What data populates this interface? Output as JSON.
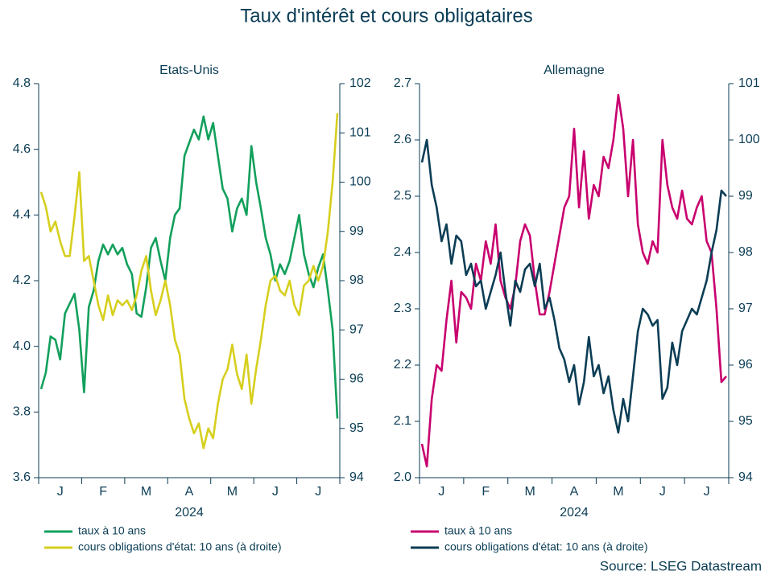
{
  "title": "Taux d'intérêt et cours obligataires",
  "source": "Source: LSEG Datastream",
  "chart_data": [
    {
      "type": "line",
      "title": "Etats-Unis",
      "xlabel": "2024",
      "categories": [
        null,
        null,
        null,
        null,
        "J",
        null,
        null,
        null,
        null,
        null,
        null,
        null,
        null,
        "F",
        null,
        null,
        null,
        null,
        null,
        null,
        null,
        null,
        "M",
        null,
        null,
        null,
        null,
        null,
        null,
        null,
        null,
        "A",
        null,
        null,
        null,
        null,
        null,
        null,
        null,
        null,
        "M",
        null,
        null,
        null,
        null,
        null,
        null,
        null,
        null,
        "J",
        null,
        null,
        null,
        null,
        null,
        null,
        null,
        null,
        "J",
        null,
        null,
        null,
        null
      ],
      "ylim": [
        3.6,
        4.8
      ],
      "yticks": [
        3.6,
        3.8,
        {
          "value": 4,
          "label": "4.0"
        },
        4.2,
        4.4,
        4.6,
        4.8
      ],
      "y2lim": [
        94,
        102
      ],
      "y2ticks": [
        94,
        95,
        96,
        97,
        98,
        99,
        100,
        101,
        102
      ],
      "series": [
        {
          "name": "taux à 10 ans",
          "color": "#12a05c",
          "values": [
            3.87,
            3.92,
            4.03,
            4.02,
            3.96,
            4.1,
            4.13,
            4.16,
            4.05,
            3.86,
            4.12,
            4.17,
            4.26,
            4.31,
            4.28,
            4.31,
            4.28,
            4.3,
            4.25,
            4.22,
            4.1,
            4.09,
            4.18,
            4.3,
            4.33,
            4.26,
            4.2,
            4.33,
            4.4,
            4.42,
            4.58,
            4.62,
            4.66,
            4.63,
            4.7,
            4.63,
            4.68,
            4.58,
            4.48,
            4.45,
            4.35,
            4.42,
            4.45,
            4.4,
            4.61,
            4.5,
            4.42,
            4.33,
            4.28,
            4.2,
            4.25,
            4.22,
            4.26,
            4.33,
            4.4,
            4.28,
            4.22,
            4.18,
            4.24,
            4.28,
            4.17,
            4.05,
            3.78
          ]
        },
        {
          "name": "cours obligations d'état: 10 ans (à droite)",
          "color": "#d6cf1e",
          "axis": "y2",
          "values": [
            99.8,
            99.5,
            99.0,
            99.2,
            98.8,
            98.5,
            98.5,
            99.3,
            100.2,
            98.4,
            98.5,
            98.0,
            97.5,
            97.2,
            97.7,
            97.3,
            97.6,
            97.5,
            97.6,
            97.4,
            97.7,
            98.2,
            98.5,
            97.8,
            97.3,
            97.6,
            98.0,
            97.5,
            96.8,
            96.5,
            95.6,
            95.2,
            94.9,
            95.1,
            94.6,
            95.0,
            94.8,
            95.5,
            96.0,
            96.2,
            96.7,
            96.1,
            95.8,
            96.5,
            95.5,
            96.2,
            96.8,
            97.5,
            98.0,
            98.1,
            97.8,
            97.7,
            98.0,
            97.5,
            97.3,
            97.9,
            98.0,
            98.3,
            98.0,
            98.3,
            99.0,
            100.0,
            101.4
          ]
        }
      ]
    },
    {
      "type": "line",
      "title": "Allemagne",
      "xlabel": "2024",
      "categories": [
        null,
        null,
        null,
        null,
        "J",
        null,
        null,
        null,
        null,
        null,
        null,
        null,
        null,
        "F",
        null,
        null,
        null,
        null,
        null,
        null,
        null,
        null,
        "M",
        null,
        null,
        null,
        null,
        null,
        null,
        null,
        null,
        "A",
        null,
        null,
        null,
        null,
        null,
        null,
        null,
        null,
        "M",
        null,
        null,
        null,
        null,
        null,
        null,
        null,
        null,
        "J",
        null,
        null,
        null,
        null,
        null,
        null,
        null,
        null,
        "J",
        null,
        null,
        null,
        null
      ],
      "ylim": [
        2,
        2.7
      ],
      "yticks": [
        {
          "value": 2,
          "label": "2.0"
        },
        2.1,
        2.2,
        2.3,
        2.4,
        2.5,
        2.6,
        2.7
      ],
      "y2lim": [
        94,
        101
      ],
      "y2ticks": [
        94,
        95,
        96,
        97,
        98,
        99,
        100,
        101
      ],
      "series": [
        {
          "name": "taux à 10 ans",
          "color": "#c8006e",
          "values": [
            2.06,
            2.02,
            2.14,
            2.2,
            2.19,
            2.28,
            2.35,
            2.24,
            2.33,
            2.32,
            2.3,
            2.38,
            2.35,
            2.42,
            2.38,
            2.45,
            2.35,
            2.32,
            2.3,
            2.34,
            2.42,
            2.45,
            2.43,
            2.35,
            2.29,
            2.29,
            2.33,
            2.38,
            2.43,
            2.48,
            2.5,
            2.62,
            2.48,
            2.58,
            2.46,
            2.52,
            2.5,
            2.57,
            2.55,
            2.6,
            2.68,
            2.62,
            2.5,
            2.6,
            2.45,
            2.4,
            2.38,
            2.42,
            2.4,
            2.6,
            2.52,
            2.48,
            2.46,
            2.51,
            2.46,
            2.45,
            2.48,
            2.5,
            2.42,
            2.4,
            2.3,
            2.17,
            2.18
          ]
        },
        {
          "name": "cours obligations d'état: 10 ans (à droite)",
          "color": "#0b3d55",
          "axis": "y2",
          "values": [
            99.6,
            100.0,
            99.2,
            98.8,
            98.2,
            98.5,
            97.8,
            98.3,
            98.2,
            97.6,
            97.8,
            97.4,
            97.5,
            97.0,
            97.3,
            97.6,
            98.0,
            97.3,
            96.7,
            97.5,
            97.3,
            97.7,
            97.8,
            97.4,
            97.8,
            97.0,
            97.2,
            96.8,
            96.3,
            96.1,
            95.7,
            96.0,
            95.3,
            95.7,
            96.5,
            95.8,
            96.0,
            95.5,
            95.8,
            95.2,
            94.8,
            95.4,
            95.0,
            95.8,
            96.6,
            97.0,
            96.9,
            96.7,
            96.8,
            95.4,
            95.6,
            96.4,
            96.0,
            96.6,
            96.8,
            97.0,
            96.9,
            97.2,
            97.5,
            98.0,
            98.4,
            99.1,
            99.0
          ]
        }
      ]
    }
  ]
}
